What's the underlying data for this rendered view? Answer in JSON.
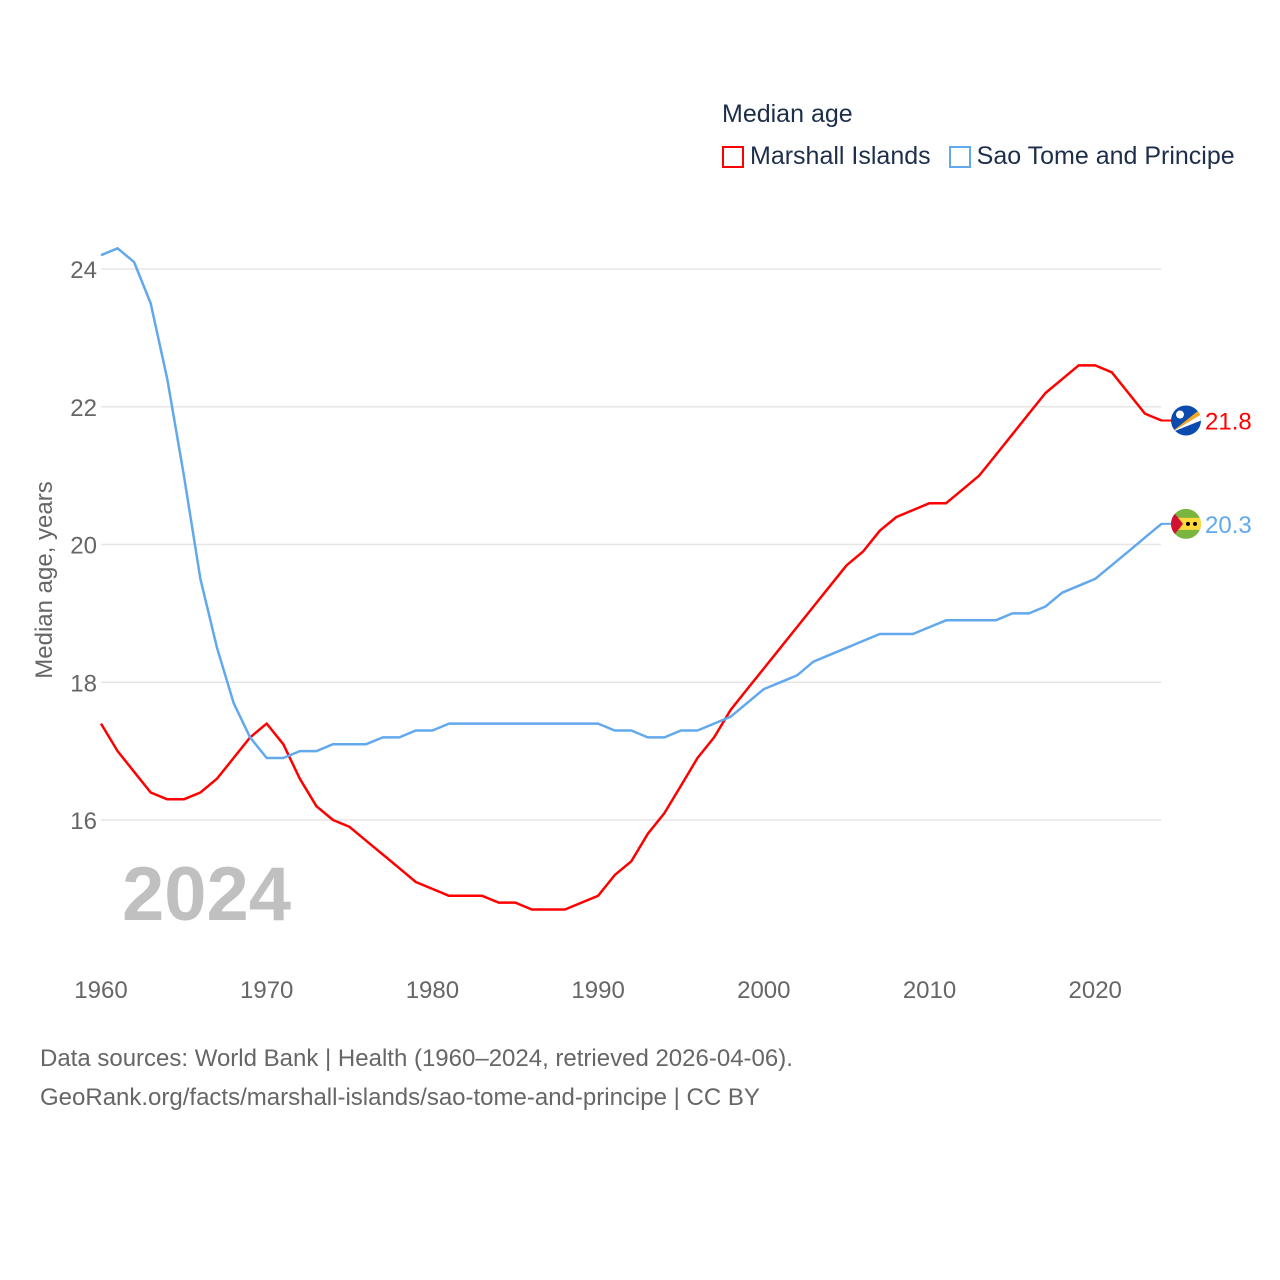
{
  "legend": {
    "title": "Median age",
    "items": [
      {
        "label": "Marshall Islands",
        "color": "#ff0000"
      },
      {
        "label": "Sao Tome and Principe",
        "color": "#62a8ec"
      }
    ]
  },
  "year_watermark": "2024",
  "footer": {
    "line1": "Data sources: World Bank | Health (1960–2024, retrieved 2026-04-06).",
    "line2": "GeoRank.org/facts/marshall-islands/sao-tome-and-principe | CC BY"
  },
  "chart_data": {
    "type": "line",
    "title": "Median age",
    "xlabel": "",
    "ylabel": "Median age, years",
    "xlim": [
      1960,
      2024
    ],
    "ylim": [
      14.5,
      24.5
    ],
    "xticks": [
      1960,
      1970,
      1980,
      1990,
      2000,
      2010,
      2020
    ],
    "yticks": [
      16,
      18,
      20,
      22,
      24
    ],
    "grid": true,
    "legend_position": "top-right",
    "x_start": 1960,
    "series": [
      {
        "name": "Marshall Islands",
        "color": "#ff0000",
        "end_label": "21.8",
        "flag": "marshall-islands",
        "values": [
          17.4,
          17.0,
          16.7,
          16.4,
          16.3,
          16.3,
          16.4,
          16.6,
          16.9,
          17.2,
          17.4,
          17.1,
          16.6,
          16.2,
          16.0,
          15.9,
          15.7,
          15.5,
          15.3,
          15.1,
          15.0,
          14.9,
          14.9,
          14.9,
          14.8,
          14.8,
          14.7,
          14.7,
          14.7,
          14.8,
          14.9,
          15.2,
          15.4,
          15.8,
          16.1,
          16.5,
          16.9,
          17.2,
          17.6,
          17.9,
          18.2,
          18.5,
          18.8,
          19.1,
          19.4,
          19.7,
          19.9,
          20.2,
          20.4,
          20.5,
          20.6,
          20.6,
          20.8,
          21.0,
          21.3,
          21.6,
          21.9,
          22.2,
          22.4,
          22.6,
          22.6,
          22.5,
          22.2,
          21.9,
          21.8
        ]
      },
      {
        "name": "Sao Tome and Principe",
        "color": "#62a8ec",
        "end_label": "20.3",
        "flag": "sao-tome-and-principe",
        "values": [
          24.2,
          24.3,
          24.1,
          23.5,
          22.4,
          21.0,
          19.5,
          18.5,
          17.7,
          17.2,
          16.9,
          16.9,
          17.0,
          17.0,
          17.1,
          17.1,
          17.1,
          17.2,
          17.2,
          17.3,
          17.3,
          17.4,
          17.4,
          17.4,
          17.4,
          17.4,
          17.4,
          17.4,
          17.4,
          17.4,
          17.4,
          17.3,
          17.3,
          17.2,
          17.2,
          17.3,
          17.3,
          17.4,
          17.5,
          17.7,
          17.9,
          18.0,
          18.1,
          18.3,
          18.4,
          18.5,
          18.6,
          18.7,
          18.7,
          18.7,
          18.8,
          18.9,
          18.9,
          18.9,
          18.9,
          19.0,
          19.0,
          19.1,
          19.3,
          19.4,
          19.5,
          19.7,
          19.9,
          20.1,
          20.3
        ]
      }
    ]
  }
}
